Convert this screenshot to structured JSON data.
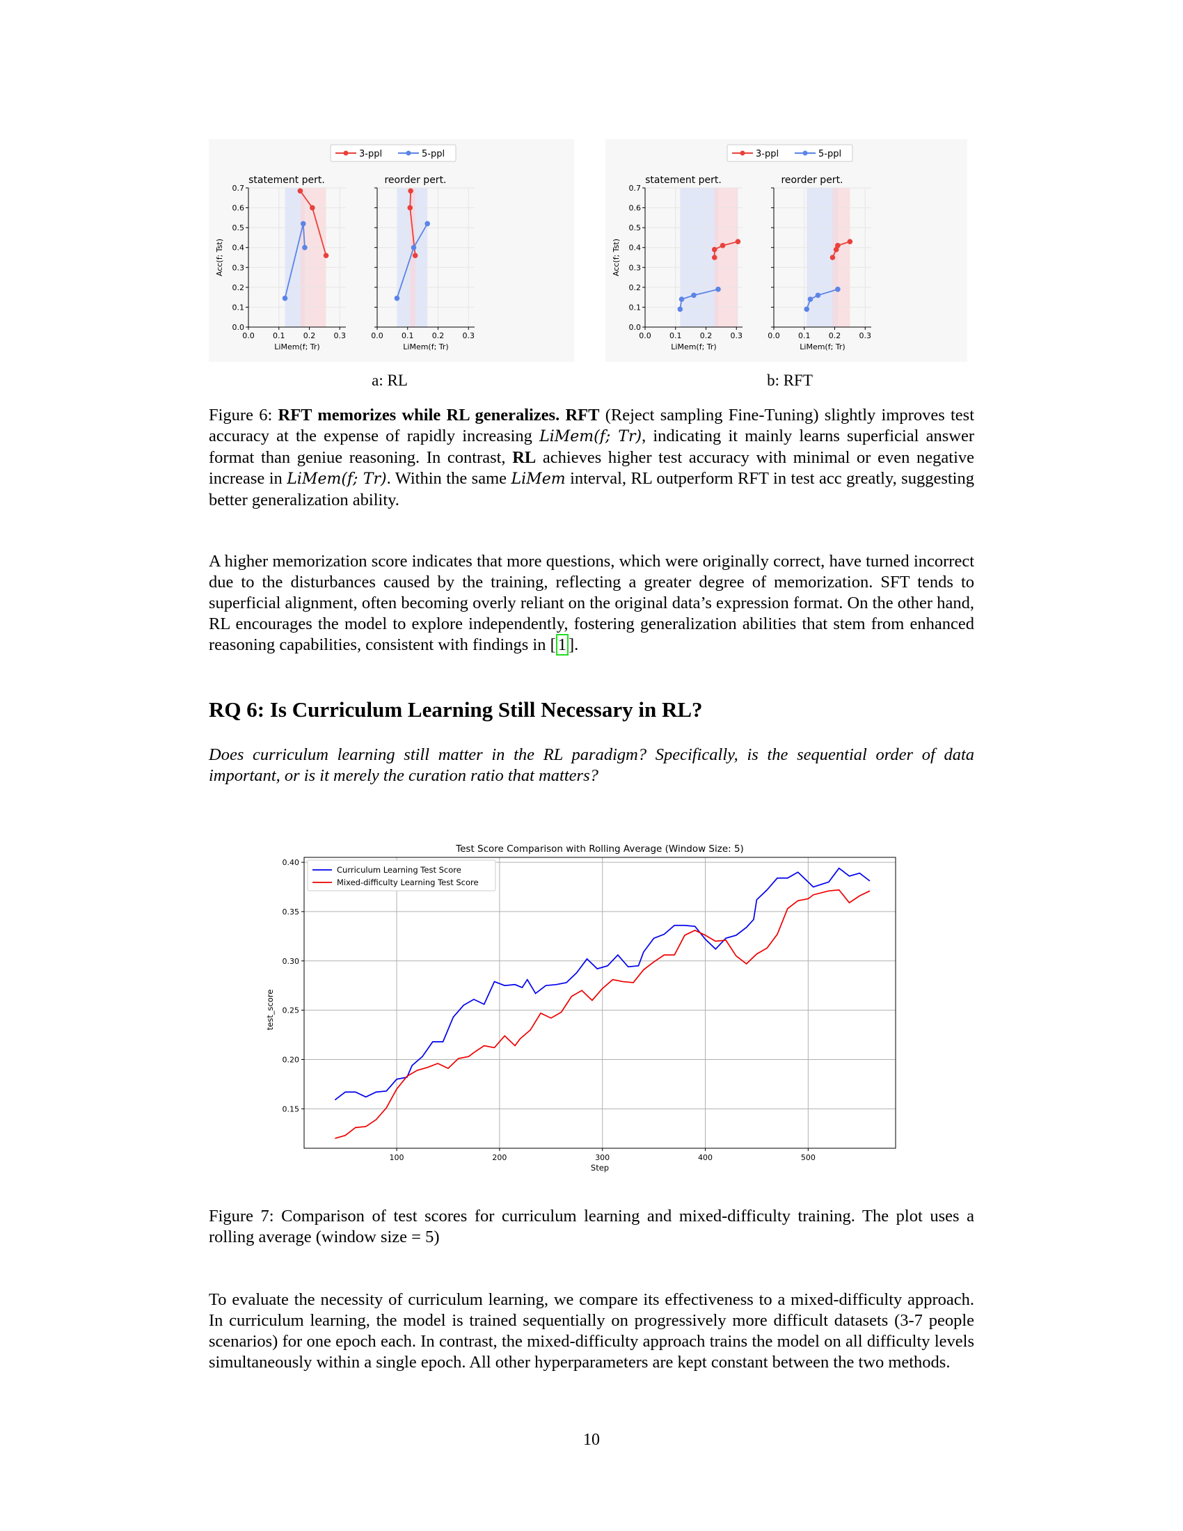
{
  "figure6": {
    "legend": {
      "series_a": "3-ppl",
      "series_b": "5-ppl"
    },
    "sublabel_a": "a: RL",
    "sublabel_b": "b: RFT",
    "caption_prefix": "Figure 6:",
    "caption_bold": "RFT memorizes while RL generalizes.",
    "caption_bold2": "RFT",
    "caption_t1": "(Reject sampling Fine-Tuning) slightly improves test accuracy at the expense of rapidly increasing",
    "caption_m1": "LiMem(f; Tr)",
    "caption_t2": ", indicating it mainly learns superficial answer format than geniue reasoning. In contrast,",
    "caption_bold3": "RL",
    "caption_t3": "achieves higher test accuracy with minimal or even negative increase in",
    "caption_m2": "LiMem(f; Tr)",
    "caption_t4": ". Within the same",
    "caption_m3": "LiMem",
    "caption_t5": "interval, RL outperform RFT in test acc greatly, suggesting better generalization ability."
  },
  "para1": {
    "text": "A higher memorization score indicates that more questions, which were originally correct, have turned incorrect due to the disturbances caused by the training, reflecting a greater degree of memorization. SFT tends to superficial alignment, often becoming overly reliant on the original data’s expression format. On the other hand, RL encourages the model to explore independently, fostering generalization abilities that stem from enhanced reasoning capabilities, consistent with findings in [",
    "cite": "1",
    "end": "]."
  },
  "heading": "RQ 6: Is Curriculum Learning Still Necessary in RL?",
  "question": "Does curriculum learning still matter in the RL paradigm? Specifically, is the sequential order of data important, or is it merely the curation ratio that matters?",
  "figure7": {
    "caption": "Figure 7: Comparison of test scores for curriculum learning and mixed-difficulty training. The plot uses a rolling average (window size = 5)"
  },
  "para2": "To evaluate the necessity of curriculum learning, we compare its effectiveness to a mixed-difficulty approach. In curriculum learning, the model is trained sequentially on progressively more difficult datasets (3-7 people scenarios) for one epoch each. In contrast, the mixed-difficulty approach trains the model on all difficulty levels simultaneously within a single epoch. All other hyperparameters are kept constant between the two methods.",
  "page_number": "10",
  "colors": {
    "red": "#e8413c",
    "blue": "#5b84e6",
    "shade_red": "#f9d5d8",
    "shade_blue": "#d8e0f8"
  },
  "chart_data": [
    {
      "type": "scatter",
      "title": "statement pert.",
      "group": "a: RL",
      "xlabel": "LiMem(f; Tr)",
      "ylabel": "Acc(f; Tst)",
      "xlim": [
        0.0,
        0.32
      ],
      "ylim": [
        0.0,
        0.7
      ],
      "xticks": [
        "0.0",
        "0.1",
        "0.2",
        "0.3"
      ],
      "yticks": [
        "0.0",
        "0.1",
        "0.2",
        "0.3",
        "0.4",
        "0.5",
        "0.6",
        "0.7"
      ],
      "series": [
        {
          "name": "3-ppl",
          "x": [
            0.17,
            0.21,
            0.255
          ],
          "y": [
            0.685,
            0.6,
            0.36
          ]
        },
        {
          "name": "5-ppl",
          "x": [
            0.12,
            0.18,
            0.185
          ],
          "y": [
            0.145,
            0.52,
            0.4
          ]
        }
      ],
      "bands": [
        {
          "color": "blue",
          "x0": 0.12,
          "x1": 0.185
        },
        {
          "color": "red",
          "x0": 0.17,
          "x1": 0.255
        }
      ]
    },
    {
      "type": "scatter",
      "title": "reorder pert.",
      "group": "a: RL",
      "xlabel": "LiMem(f; Tr)",
      "xlim": [
        0.0,
        0.32
      ],
      "ylim": [
        0.0,
        0.7
      ],
      "xticks": [
        "0.0",
        "0.1",
        "0.2",
        "0.3"
      ],
      "series": [
        {
          "name": "3-ppl",
          "x": [
            0.11,
            0.108,
            0.125
          ],
          "y": [
            0.685,
            0.6,
            0.36
          ]
        },
        {
          "name": "5-ppl",
          "x": [
            0.065,
            0.12,
            0.165
          ],
          "y": [
            0.145,
            0.4,
            0.52
          ]
        }
      ],
      "bands": [
        {
          "color": "blue",
          "x0": 0.065,
          "x1": 0.165
        },
        {
          "color": "red",
          "x0": 0.108,
          "x1": 0.125
        }
      ]
    },
    {
      "type": "scatter",
      "title": "statement pert.",
      "group": "b: RFT",
      "xlabel": "LiMem(f; Tr)",
      "ylabel": "Acc(f; Tst)",
      "xlim": [
        0.0,
        0.32
      ],
      "ylim": [
        0.0,
        0.7
      ],
      "xticks": [
        "0.0",
        "0.1",
        "0.2",
        "0.3"
      ],
      "yticks": [
        "0.0",
        "0.1",
        "0.2",
        "0.3",
        "0.4",
        "0.5",
        "0.6",
        "0.7"
      ],
      "series": [
        {
          "name": "3-ppl",
          "x": [
            0.228,
            0.228,
            0.255,
            0.305
          ],
          "y": [
            0.35,
            0.39,
            0.41,
            0.43
          ]
        },
        {
          "name": "5-ppl",
          "x": [
            0.115,
            0.12,
            0.16,
            0.24
          ],
          "y": [
            0.09,
            0.14,
            0.16,
            0.19
          ]
        }
      ],
      "bands": [
        {
          "color": "blue",
          "x0": 0.115,
          "x1": 0.24
        },
        {
          "color": "red",
          "x0": 0.228,
          "x1": 0.305
        }
      ]
    },
    {
      "type": "scatter",
      "title": "reorder pert.",
      "group": "b: RFT",
      "xlabel": "LiMem(f; Tr)",
      "xlim": [
        0.0,
        0.32
      ],
      "ylim": [
        0.0,
        0.7
      ],
      "xticks": [
        "0.0",
        "0.1",
        "0.2",
        "0.3"
      ],
      "series": [
        {
          "name": "3-ppl",
          "x": [
            0.193,
            0.205,
            0.21,
            0.25
          ],
          "y": [
            0.35,
            0.39,
            0.41,
            0.43
          ]
        },
        {
          "name": "5-ppl",
          "x": [
            0.108,
            0.12,
            0.145,
            0.21
          ],
          "y": [
            0.09,
            0.14,
            0.16,
            0.19
          ]
        }
      ],
      "bands": [
        {
          "color": "blue",
          "x0": 0.108,
          "x1": 0.21
        },
        {
          "color": "red",
          "x0": 0.193,
          "x1": 0.25
        }
      ]
    },
    {
      "type": "line",
      "title": "Test Score Comparison with Rolling Average (Window Size: 5)",
      "xlabel": "Step",
      "ylabel": "test_score",
      "xlim": [
        10,
        585
      ],
      "ylim": [
        0.11,
        0.405
      ],
      "xticks": [
        "100",
        "200",
        "300",
        "400",
        "500"
      ],
      "yticks": [
        "0.15",
        "0.20",
        "0.25",
        "0.30",
        "0.35",
        "0.40"
      ],
      "legend": "top-left",
      "grid": true,
      "series": [
        {
          "name": "Curriculum Learning Test Score",
          "color": "#0000ee",
          "x": [
            40,
            50,
            60,
            70,
            80,
            90,
            100,
            110,
            115,
            125,
            135,
            145,
            155,
            165,
            175,
            185,
            195,
            205,
            215,
            222,
            227,
            235,
            245,
            255,
            265,
            275,
            285,
            295,
            305,
            315,
            325,
            335,
            340,
            350,
            360,
            370,
            380,
            390,
            400,
            410,
            420,
            430,
            440,
            447,
            450,
            460,
            470,
            480,
            490,
            500,
            505,
            520,
            530,
            540,
            550,
            560
          ],
          "y": [
            0.159,
            0.167,
            0.167,
            0.162,
            0.167,
            0.168,
            0.18,
            0.182,
            0.194,
            0.203,
            0.218,
            0.218,
            0.243,
            0.255,
            0.261,
            0.256,
            0.279,
            0.275,
            0.276,
            0.273,
            0.281,
            0.267,
            0.275,
            0.276,
            0.278,
            0.288,
            0.302,
            0.292,
            0.295,
            0.306,
            0.294,
            0.295,
            0.309,
            0.323,
            0.327,
            0.336,
            0.336,
            0.335,
            0.322,
            0.312,
            0.323,
            0.326,
            0.334,
            0.342,
            0.362,
            0.372,
            0.384,
            0.384,
            0.39,
            0.38,
            0.375,
            0.38,
            0.394,
            0.386,
            0.389,
            0.381
          ]
        },
        {
          "name": "Mixed-difficulty Learning Test Score",
          "color": "#ee0000",
          "x": [
            40,
            50,
            60,
            70,
            80,
            90,
            100,
            110,
            120,
            130,
            140,
            150,
            160,
            170,
            175,
            185,
            195,
            205,
            215,
            220,
            230,
            240,
            250,
            260,
            270,
            280,
            290,
            300,
            310,
            320,
            330,
            340,
            350,
            360,
            370,
            380,
            390,
            400,
            410,
            420,
            430,
            440,
            450,
            460,
            470,
            480,
            490,
            500,
            505,
            520,
            530,
            540,
            550,
            560
          ],
          "y": [
            0.12,
            0.123,
            0.131,
            0.132,
            0.139,
            0.151,
            0.17,
            0.183,
            0.189,
            0.192,
            0.196,
            0.191,
            0.201,
            0.203,
            0.207,
            0.214,
            0.212,
            0.224,
            0.214,
            0.221,
            0.23,
            0.247,
            0.242,
            0.248,
            0.264,
            0.27,
            0.26,
            0.272,
            0.281,
            0.279,
            0.278,
            0.291,
            0.299,
            0.306,
            0.306,
            0.326,
            0.331,
            0.326,
            0.32,
            0.321,
            0.305,
            0.297,
            0.307,
            0.313,
            0.327,
            0.353,
            0.361,
            0.363,
            0.367,
            0.371,
            0.372,
            0.359,
            0.366,
            0.371
          ]
        }
      ]
    }
  ]
}
